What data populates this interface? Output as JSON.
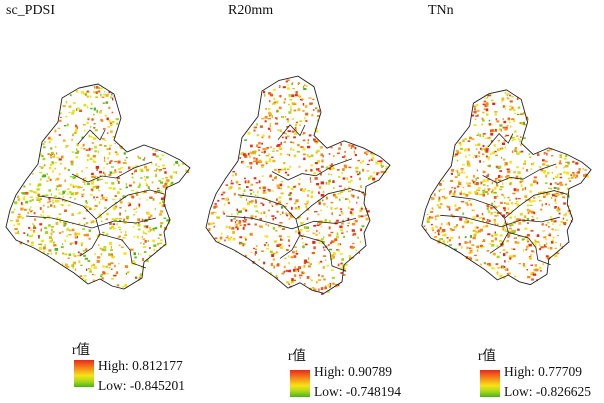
{
  "panels": [
    {
      "id": "sc_pdsi",
      "title": "sc_PDSI",
      "legend": {
        "label": "r值",
        "high": "High: 0.812177",
        "low": "Low: -0.845201"
      }
    },
    {
      "id": "r20mm",
      "title": "R20mm",
      "legend": {
        "label": "r值",
        "high": "High: 0.90789",
        "low": "Low: -0.748194"
      }
    },
    {
      "id": "tnn",
      "title": "TNn",
      "legend": {
        "label": "r值",
        "high": "High: 0.77709",
        "low": "Low: -0.826625"
      }
    }
  ],
  "colors": {
    "high": "#e8281c",
    "mid": "#f6e316",
    "low": "#4ab31b",
    "boundary": "#222222"
  }
}
